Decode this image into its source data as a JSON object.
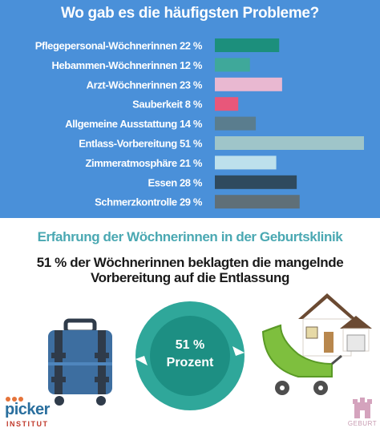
{
  "chart_data": {
    "type": "bar",
    "orientation": "horizontal",
    "title": "Wo gab es die häufigsten Probleme?",
    "unit": "%",
    "xlim": [
      0,
      51
    ],
    "grid": false,
    "categories": [
      "Pflegepersonal-Wöchnerinnen",
      "Hebammen-Wöchnerinnen",
      "Arzt-Wöchnerinnen",
      "Sauberkeit",
      "Allgemeine Ausstattung",
      "Entlass-Vorbereitung",
      "Zimmeratmosphäre",
      "Essen",
      "Schmerzkontrolle"
    ],
    "values": [
      22,
      12,
      23,
      8,
      14,
      51,
      21,
      28,
      29
    ],
    "labels": [
      "Pflegepersonal-Wöchnerinnen 22 %",
      "Hebammen-Wöchnerinnen 12 %",
      "Arzt-Wöchnerinnen 23 %",
      "Sauberkeit 8 %",
      "Allgemeine Ausstattung 14 %",
      "Entlass-Vorbereitung 51 %",
      "Zimmeratmosphäre 21 %",
      "Essen 28 %",
      "Schmerzkontrolle 29 %"
    ],
    "colors": [
      "#1c8f7c",
      "#3fa89a",
      "#e9b8d1",
      "#e8577a",
      "#5a7d8e",
      "#9fc5c9",
      "#bde0ec",
      "#2f4a5e",
      "#5f6f78"
    ]
  },
  "section": {
    "title": "Erfahrung der Wöchnerinnen in der Geburtsklinik",
    "headline": "51 % der Wöchnerinnen beklagten die mangelnde Vorbereitung auf die Entlassung"
  },
  "circle": {
    "value": "51 %",
    "unit": "Prozent",
    "fraction": 0.51,
    "color": "#2fa79a"
  },
  "logos": {
    "left": "picker",
    "left_sub": "INSTITUT",
    "right": "GEBURT"
  },
  "icons": [
    "suitcase-icon",
    "percentage-circle-icon",
    "stroller-house-icon"
  ]
}
